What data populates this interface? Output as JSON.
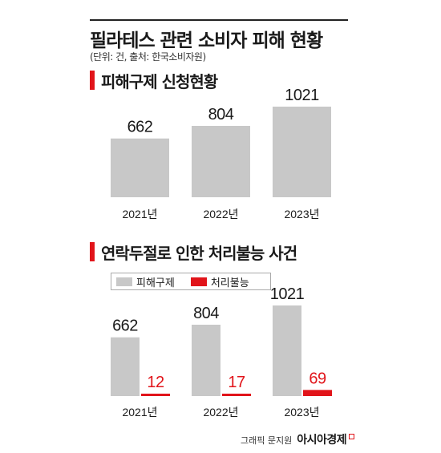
{
  "title": "필라테스 관련 소비자 피해 현황",
  "subtitle": "(단위: 건, 출처: 한국소비자원)",
  "colors": {
    "gray": "#c8c8c8",
    "red": "#e1141a",
    "accent": "#e1141a"
  },
  "footer": {
    "credit": "그래픽 문지원",
    "brand": "아시아경제"
  },
  "chart_data": [
    {
      "type": "bar",
      "title": "피해구제 신청현황",
      "categories": [
        "2021년",
        "2022년",
        "2023년"
      ],
      "values": [
        662,
        804,
        1021
      ],
      "ylim": [
        0,
        1021
      ]
    },
    {
      "type": "bar",
      "title": "연락두절로 인한 처리불능 사건",
      "categories": [
        "2021년",
        "2022년",
        "2023년"
      ],
      "legend": [
        "피해구제",
        "처리불능"
      ],
      "series": [
        {
          "name": "피해구제",
          "values": [
            662,
            804,
            1021
          ]
        },
        {
          "name": "처리불능",
          "values": [
            12,
            17,
            69
          ]
        }
      ],
      "ylim": [
        0,
        1021
      ]
    }
  ]
}
